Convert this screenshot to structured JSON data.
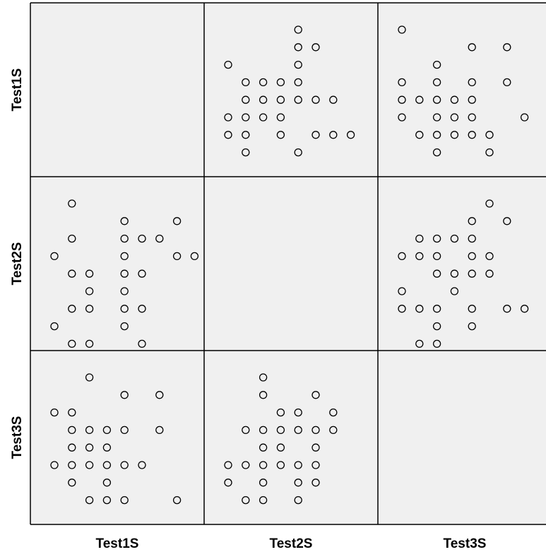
{
  "chart_data": {
    "type": "scatter",
    "title": "",
    "variables": [
      "Test1S",
      "Test2S",
      "Test3S"
    ],
    "colors": {
      "panel_background": "#f0f0f0",
      "grid_border": "#000000",
      "marker_stroke": "#000000"
    },
    "marker": "hollow-circle",
    "panels": [
      {
        "row": "Test1S",
        "col": "Test2S",
        "points": [
          [
            4,
            10
          ],
          [
            4,
            9
          ],
          [
            5,
            9
          ],
          [
            0,
            8
          ],
          [
            4,
            8
          ],
          [
            1,
            7
          ],
          [
            2,
            7
          ],
          [
            3,
            7
          ],
          [
            4,
            7
          ],
          [
            1,
            6
          ],
          [
            2,
            6
          ],
          [
            3,
            6
          ],
          [
            4,
            6
          ],
          [
            5,
            6
          ],
          [
            6,
            6
          ],
          [
            0,
            5
          ],
          [
            1,
            5
          ],
          [
            2,
            5
          ],
          [
            3,
            5
          ],
          [
            0,
            4
          ],
          [
            1,
            4
          ],
          [
            3,
            4
          ],
          [
            5,
            4
          ],
          [
            6,
            4
          ],
          [
            7,
            4
          ],
          [
            1,
            3
          ],
          [
            4,
            3
          ]
        ]
      },
      {
        "row": "Test1S",
        "col": "Test3S",
        "points": [
          [
            0,
            10
          ],
          [
            4,
            9
          ],
          [
            6,
            9
          ],
          [
            2,
            8
          ],
          [
            0,
            7
          ],
          [
            2,
            7
          ],
          [
            4,
            7
          ],
          [
            6,
            7
          ],
          [
            0,
            6
          ],
          [
            1,
            6
          ],
          [
            2,
            6
          ],
          [
            3,
            6
          ],
          [
            4,
            6
          ],
          [
            0,
            5
          ],
          [
            2,
            5
          ],
          [
            3,
            5
          ],
          [
            4,
            5
          ],
          [
            7,
            5
          ],
          [
            1,
            4
          ],
          [
            2,
            4
          ],
          [
            3,
            4
          ],
          [
            4,
            4
          ],
          [
            5,
            4
          ],
          [
            2,
            3
          ],
          [
            5,
            3
          ]
        ]
      },
      {
        "row": "Test2S",
        "col": "Test1S",
        "points": [
          [
            1,
            10
          ],
          [
            4,
            9
          ],
          [
            7,
            9
          ],
          [
            1,
            8
          ],
          [
            4,
            8
          ],
          [
            5,
            8
          ],
          [
            6,
            8
          ],
          [
            0,
            7
          ],
          [
            4,
            7
          ],
          [
            7,
            7
          ],
          [
            8,
            7
          ],
          [
            1,
            6
          ],
          [
            2,
            6
          ],
          [
            4,
            6
          ],
          [
            5,
            6
          ],
          [
            2,
            5
          ],
          [
            4,
            5
          ],
          [
            1,
            4
          ],
          [
            2,
            4
          ],
          [
            4,
            4
          ],
          [
            5,
            4
          ],
          [
            0,
            3
          ],
          [
            4,
            3
          ],
          [
            1,
            2
          ],
          [
            2,
            2
          ],
          [
            5,
            2
          ]
        ]
      },
      {
        "row": "Test2S",
        "col": "Test3S",
        "points": [
          [
            5,
            10
          ],
          [
            4,
            9
          ],
          [
            6,
            9
          ],
          [
            1,
            8
          ],
          [
            2,
            8
          ],
          [
            3,
            8
          ],
          [
            4,
            8
          ],
          [
            0,
            7
          ],
          [
            1,
            7
          ],
          [
            2,
            7
          ],
          [
            4,
            7
          ],
          [
            5,
            7
          ],
          [
            2,
            6
          ],
          [
            3,
            6
          ],
          [
            4,
            6
          ],
          [
            5,
            6
          ],
          [
            0,
            5
          ],
          [
            3,
            5
          ],
          [
            0,
            4
          ],
          [
            1,
            4
          ],
          [
            2,
            4
          ],
          [
            4,
            4
          ],
          [
            6,
            4
          ],
          [
            7,
            4
          ],
          [
            2,
            3
          ],
          [
            4,
            3
          ],
          [
            1,
            2
          ],
          [
            2,
            2
          ]
        ]
      },
      {
        "row": "Test3S",
        "col": "Test1S",
        "points": [
          [
            2,
            10
          ],
          [
            4,
            9
          ],
          [
            6,
            9
          ],
          [
            0,
            8
          ],
          [
            1,
            8
          ],
          [
            1,
            7
          ],
          [
            2,
            7
          ],
          [
            3,
            7
          ],
          [
            4,
            7
          ],
          [
            6,
            7
          ],
          [
            1,
            6
          ],
          [
            2,
            6
          ],
          [
            3,
            6
          ],
          [
            0,
            5
          ],
          [
            1,
            5
          ],
          [
            2,
            5
          ],
          [
            3,
            5
          ],
          [
            4,
            5
          ],
          [
            5,
            5
          ],
          [
            1,
            4
          ],
          [
            3,
            4
          ],
          [
            2,
            3
          ],
          [
            3,
            3
          ],
          [
            4,
            3
          ],
          [
            7,
            3
          ]
        ]
      },
      {
        "row": "Test3S",
        "col": "Test2S",
        "points": [
          [
            2,
            10
          ],
          [
            2,
            9
          ],
          [
            5,
            9
          ],
          [
            3,
            8
          ],
          [
            4,
            8
          ],
          [
            6,
            8
          ],
          [
            1,
            7
          ],
          [
            2,
            7
          ],
          [
            3,
            7
          ],
          [
            4,
            7
          ],
          [
            5,
            7
          ],
          [
            6,
            7
          ],
          [
            2,
            6
          ],
          [
            3,
            6
          ],
          [
            5,
            6
          ],
          [
            0,
            5
          ],
          [
            1,
            5
          ],
          [
            2,
            5
          ],
          [
            3,
            5
          ],
          [
            4,
            5
          ],
          [
            5,
            5
          ],
          [
            0,
            4
          ],
          [
            2,
            4
          ],
          [
            4,
            4
          ],
          [
            5,
            4
          ],
          [
            1,
            3
          ],
          [
            2,
            3
          ],
          [
            4,
            3
          ]
        ]
      }
    ]
  }
}
